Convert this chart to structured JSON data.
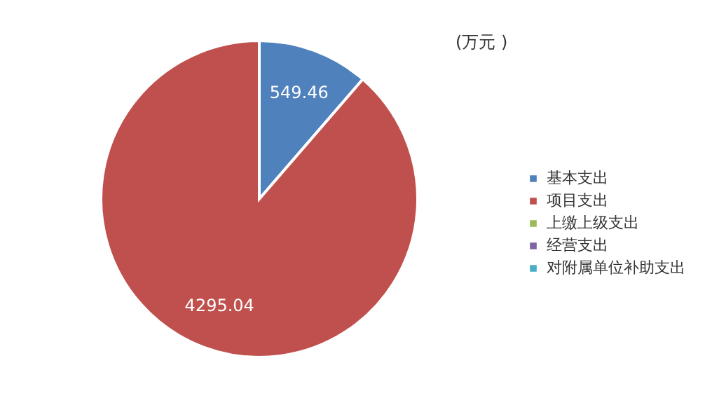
{
  "chart_data": {
    "type": "pie",
    "categories": [
      "基本支出",
      "项目支出",
      "上缴上级支出",
      "经营支出",
      "对附属单位补助支出"
    ],
    "values": [
      549.46,
      4295.04,
      0,
      0,
      0
    ],
    "colors": [
      "#4f81bd",
      "#c0504d",
      "#9bbb59",
      "#8064a2",
      "#4bacc6"
    ],
    "value_labels": [
      "549.46",
      "4295.04",
      null,
      null,
      null
    ],
    "annotations": [
      "(万元 )"
    ],
    "legend": "right"
  }
}
